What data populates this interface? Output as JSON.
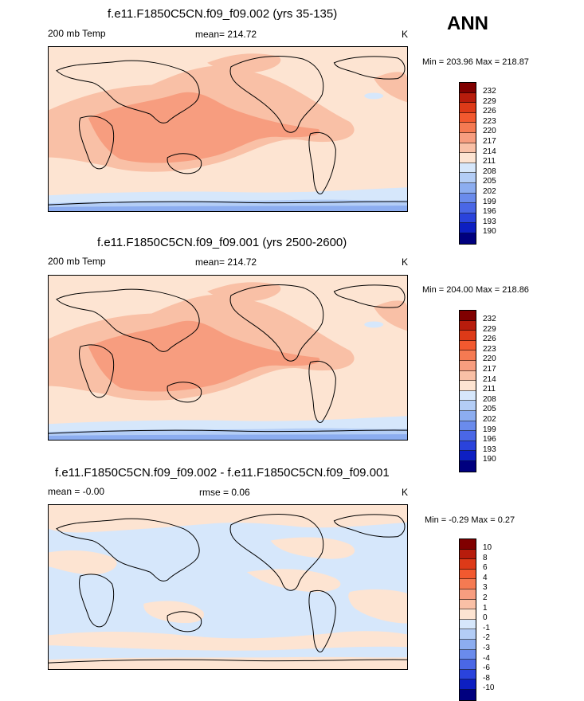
{
  "season": "ANN",
  "units": "K",
  "panels": [
    {
      "title": "f.e11.F1850C5CN.f09_f09.002 (yrs 35-135)",
      "left_label": "200 mb Temp",
      "center_label": "mean= 214.72",
      "units": "K",
      "minmax": "Min = 203.96 Max = 218.87",
      "colorbar_labels": [
        "232",
        "229",
        "226",
        "223",
        "220",
        "217",
        "214",
        "211",
        "208",
        "205",
        "202",
        "199",
        "196",
        "193",
        "190"
      ]
    },
    {
      "title": "f.e11.F1850C5CN.f09_f09.001 (yrs 2500-2600)",
      "left_label": "200 mb Temp",
      "center_label": "mean= 214.72",
      "units": "K",
      "minmax": "Min = 204.00 Max = 218.86",
      "colorbar_labels": [
        "232",
        "229",
        "226",
        "223",
        "220",
        "217",
        "214",
        "211",
        "208",
        "205",
        "202",
        "199",
        "196",
        "193",
        "190"
      ]
    },
    {
      "title": "f.e11.F1850C5CN.f09_f09.002 - f.e11.F1850C5CN.f09_f09.001",
      "left_label": "mean =  -0.00",
      "center_label": "rmse =   0.06",
      "units": "K",
      "minmax": "Min =  -0.29 Max =   0.27",
      "colorbar_labels": [
        "10",
        "8",
        "6",
        "4",
        "3",
        "2",
        "1",
        "0",
        "-1",
        "-2",
        "-3",
        "-4",
        "-6",
        "-8",
        "-10"
      ]
    }
  ],
  "colors": {
    "colorbar": [
      "#800000",
      "#b71c0c",
      "#dd3a18",
      "#f2592f",
      "#f57a52",
      "#f79d7f",
      "#f9c0a6",
      "#fde4d2",
      "#d6e7fb",
      "#b3cdf6",
      "#8cadf0",
      "#6a8bec",
      "#4a67e6",
      "#2a43dc",
      "#0d1fc2",
      "#00007f"
    ],
    "panel1": {
      "base": "#fde4d2",
      "warm": "#f9c0a6",
      "hot": "#f79d7f",
      "cool": "#d6e7fb",
      "cold": "#b3cdf6",
      "colder": "#8cadf0"
    },
    "panel3": {
      "pos": "#fde4d2",
      "neg": "#d6e7fb"
    }
  }
}
